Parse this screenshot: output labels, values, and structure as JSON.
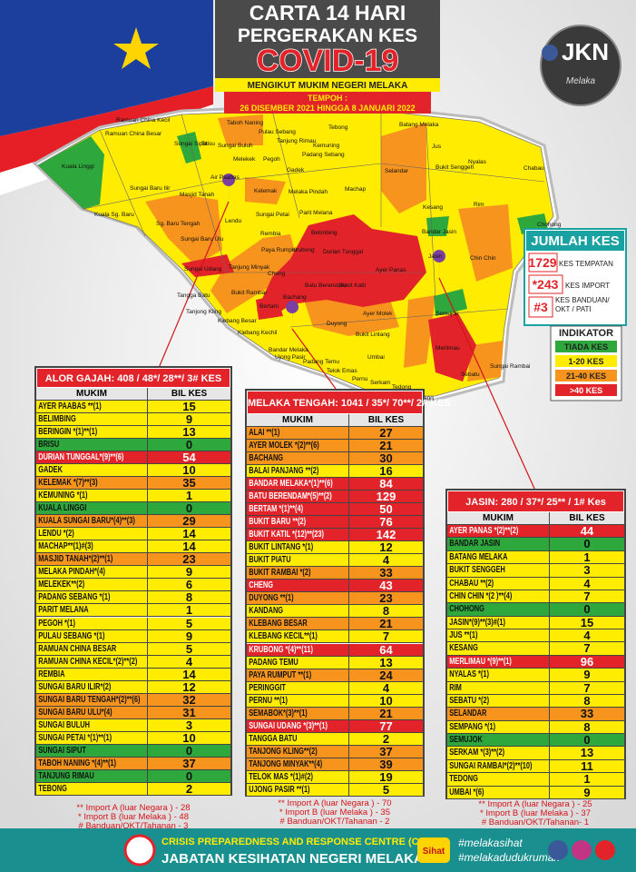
{
  "header": {
    "title_line1": "CARTA 14 HARI",
    "title_line2": "PERGERAKAN KES",
    "title_line3": "COVID-19",
    "subtitle": "MENGIKUT MUKIM NEGERI MELAKA",
    "period_label": "TEMPOH :",
    "period": "26 DISEMBER 2021 HINGGA 8 JANUARI 2022"
  },
  "logo": {
    "name": "JKN",
    "place": "Melaka"
  },
  "summary": {
    "title": "JUMLAH KES",
    "items": [
      {
        "value": "1729",
        "label": "KES TEMPATAN"
      },
      {
        "value": "*243",
        "label": "KES IMPORT"
      },
      {
        "value": "#3",
        "label": "KES BANDUAN/ OKT / PATI"
      }
    ]
  },
  "legend": {
    "title": "INDIKATOR",
    "items": [
      {
        "label": "TIADA KES",
        "color": "#2ea83c"
      },
      {
        "label": "1-20 KES",
        "color": "#ffec00"
      },
      {
        "label": "21-40 KES",
        "color": "#f7941d"
      },
      {
        "label": ">40 KES",
        "color": "#e2242a"
      }
    ]
  },
  "map": {
    "labels": [
      "Ramuan China Kecil",
      "Ramuan China Besar",
      "Kuala Linggi",
      "Sungai Siput",
      "Brisu",
      "Taboh Naning",
      "Sungai Buluh",
      "Pulau Sebang",
      "Tebong",
      "Batang Melaka",
      "Tanjung Rimau",
      "Kemuning",
      "Padang Sebang",
      "Melekek",
      "Pegoh",
      "Gadek",
      "Air Paabas",
      "Sungai Baru Ilir",
      "Masjid Tanah",
      "Kelemak",
      "Melaka Pindah",
      "Machap",
      "Selandar",
      "Bukit Senggeh",
      "Jus",
      "Nyalas",
      "Chabau",
      "Kuala Sg. Baru",
      "Sg. Baru Tengah",
      "Lendu",
      "Sungai Petai",
      "Parit Melana",
      "Kesang",
      "Rim",
      "Chohong",
      "Sungai Baru Ulu",
      "Rembia",
      "Belimbing",
      "Bandar Jasin",
      "Jasin",
      "Chin Chin",
      "Sungai Udang",
      "Paya Rumput",
      "Tanjung Minyak",
      "Durian Tunggal",
      "Ayer Panas",
      "Krubong",
      "Cheng",
      "Bukit Rambai",
      "Batu Berendam",
      "Bukit Katil",
      "Tangga Batu",
      "Tanjong Kling",
      "Bertam",
      "Bachang",
      "Semujok",
      "Ayer Molek",
      "Klebang Besar",
      "Duyong",
      "Klebang Kechil",
      "Bukit Lintang",
      "Merlimau",
      "Bandar Melaka",
      "Ujong Pasir",
      "Padang Temu",
      "Umbai",
      "Telok Emas",
      "Pernu",
      "Serkam",
      "Tedong",
      "Sempang",
      "Sebatu",
      "Sungai Rambai"
    ]
  },
  "districts": [
    {
      "title": "ALOR GAJAH: 408 / 48*/ 28**/ 3# KES",
      "columns": [
        "MUKIM",
        "BIL KES"
      ],
      "rows": [
        {
          "mukim": "AYER PAABAS **(1)",
          "cases": 15
        },
        {
          "mukim": "BELIMBING",
          "cases": 9
        },
        {
          "mukim": "BERINGIN *(1)**(1)",
          "cases": 13
        },
        {
          "mukim": "BRISU",
          "cases": 0
        },
        {
          "mukim": "DURIAN TUNGGAL*(9)**(6)",
          "cases": 54
        },
        {
          "mukim": "GADEK",
          "cases": 10
        },
        {
          "mukim": "KELEMAK *(7)**(3)",
          "cases": 35
        },
        {
          "mukim": "KEMUNING *(1)",
          "cases": 1
        },
        {
          "mukim": "KUALA LINGGI",
          "cases": 0
        },
        {
          "mukim": "KUALA SUNGAI BARU*(4)**(3)",
          "cases": 29
        },
        {
          "mukim": "LENDU *(2)",
          "cases": 14
        },
        {
          "mukim": "MACHAP**(1)#(3)",
          "cases": 14
        },
        {
          "mukim": "MASJID TANAH*(2)**(1)",
          "cases": 23
        },
        {
          "mukim": "MELAKA PINDAH*(4)",
          "cases": 9
        },
        {
          "mukim": "MELEKEK**(2)",
          "cases": 6
        },
        {
          "mukim": "PADANG SEBANG *(1)",
          "cases": 8
        },
        {
          "mukim": "PARIT MELANA",
          "cases": 1
        },
        {
          "mukim": "PEGOH *(1)",
          "cases": 5
        },
        {
          "mukim": "PULAU SEBANG *(1)",
          "cases": 9
        },
        {
          "mukim": "RAMUAN CHINA BESAR",
          "cases": 5
        },
        {
          "mukim": "RAMUAN CHINA KECIL*(2)**(2)",
          "cases": 4
        },
        {
          "mukim": "REMBIA",
          "cases": 14
        },
        {
          "mukim": "SUNGAI BARU ILIR*(2)",
          "cases": 12
        },
        {
          "mukim": "SUNGAI BARU TENGAH*(2)**(6)",
          "cases": 32
        },
        {
          "mukim": "SUNGAI BARU ULU*(4)",
          "cases": 31
        },
        {
          "mukim": "SUNGAI BULUH",
          "cases": 3
        },
        {
          "mukim": "SUNGAI PETAI *(1)**(1)",
          "cases": 10
        },
        {
          "mukim": "SUNGAI SIPUT",
          "cases": 0
        },
        {
          "mukim": "TABOH NANING *(4)**(1)",
          "cases": 37
        },
        {
          "mukim": "TANJUNG RIMAU",
          "cases": 0
        },
        {
          "mukim": "TEBONG",
          "cases": 2
        }
      ],
      "footnotes": [
        "** Import A (luar Negara ) - 28",
        "* Import B (luar Melaka ) - 48",
        "# Banduan/OKT/Tahanan - 3"
      ]
    },
    {
      "title": "MELAKA TENGAH: 1041 / 35*/ 70**/ 2# KES",
      "columns": [
        "MUKIM",
        "BIL KES"
      ],
      "rows": [
        {
          "mukim": "ALAI **(1)",
          "cases": 27
        },
        {
          "mukim": "AYER MOLEK *(2)**(6)",
          "cases": 21
        },
        {
          "mukim": "BACHANG",
          "cases": 30
        },
        {
          "mukim": "BALAI PANJANG **(2)",
          "cases": 16
        },
        {
          "mukim": "BANDAR MELAKA*(1)**(6)",
          "cases": 84
        },
        {
          "mukim": "BATU BERENDAM*(5)**(2)",
          "cases": 129
        },
        {
          "mukim": "BERTAM *(1)**(4)",
          "cases": 50
        },
        {
          "mukim": "BUKIT BARU **(2)",
          "cases": 76
        },
        {
          "mukim": "BUKIT KATIL *(12)**(23)",
          "cases": 142
        },
        {
          "mukim": "BUKIT LINTANG *(1)",
          "cases": 12
        },
        {
          "mukim": "BUKIT PIATU",
          "cases": 4
        },
        {
          "mukim": "BUKIT RAMBAI *(2)",
          "cases": 33
        },
        {
          "mukim": "CHENG",
          "cases": 43
        },
        {
          "mukim": "DUYONG **(1)",
          "cases": 23
        },
        {
          "mukim": "KANDANG",
          "cases": 8
        },
        {
          "mukim": "KLEBANG BESAR",
          "cases": 21
        },
        {
          "mukim": "KLEBANG KECIL**(1)",
          "cases": 7
        },
        {
          "mukim": "KRUBONG *(4)**(11)",
          "cases": 64
        },
        {
          "mukim": "PADANG TEMU",
          "cases": 13
        },
        {
          "mukim": "PAYA RUMPUT **(1)",
          "cases": 24
        },
        {
          "mukim": "PERINGGIT",
          "cases": 4
        },
        {
          "mukim": "PERNU **(1)",
          "cases": 10
        },
        {
          "mukim": "SEMABOK*(3)**(1)",
          "cases": 21
        },
        {
          "mukim": "SUNGAI UDANG *(3)**(1)",
          "cases": 77
        },
        {
          "mukim": "TANGGA BATU",
          "cases": 2
        },
        {
          "mukim": "TANJONG KLING**(2)",
          "cases": 37
        },
        {
          "mukim": "TANJONG MINYAK**(4)",
          "cases": 39
        },
        {
          "mukim": "TELOK MAS *(1)#(2)",
          "cases": 19
        },
        {
          "mukim": "UJONG PASIR **(1)",
          "cases": 5
        }
      ],
      "footnotes": [
        "** Import A (luar Negara ) - 70",
        "* Import B (luar Melaka ) - 35",
        "# Banduan/OKT/Tahanan - 2"
      ]
    },
    {
      "title": "JASIN: 280 / 37*/ 25** / 1# Kes",
      "columns": [
        "MUKIM",
        "BIL KES"
      ],
      "rows": [
        {
          "mukim": "AYER PANAS *(2)**(2)",
          "cases": 44
        },
        {
          "mukim": "BANDAR JASIN",
          "cases": 0
        },
        {
          "mukim": "BATANG MELAKA",
          "cases": 1
        },
        {
          "mukim": "BUKIT SENGGEH",
          "cases": 3
        },
        {
          "mukim": "CHABAU **(2)",
          "cases": 4
        },
        {
          "mukim": "CHIN CHIN *(2 )**(4)",
          "cases": 7
        },
        {
          "mukim": "CHOHONG",
          "cases": 0
        },
        {
          "mukim": "JASIN*(9)**(3)#(1)",
          "cases": 15
        },
        {
          "mukim": "JUS **(1)",
          "cases": 4
        },
        {
          "mukim": "KESANG",
          "cases": 7
        },
        {
          "mukim": "MERLIMAU *(9)**(1)",
          "cases": 96
        },
        {
          "mukim": "NYALAS *(1)",
          "cases": 9
        },
        {
          "mukim": "RIM",
          "cases": 7
        },
        {
          "mukim": "SEBATU *(2)",
          "cases": 8
        },
        {
          "mukim": "SELANDAR",
          "cases": 33
        },
        {
          "mukim": "SEMPANG *(1)",
          "cases": 8
        },
        {
          "mukim": "SEMUJOK",
          "cases": 0
        },
        {
          "mukim": "SERKAM *(3)**(2)",
          "cases": 13
        },
        {
          "mukim": "SUNGAI RAMBAI*(2)**(10)",
          "cases": 11
        },
        {
          "mukim": "TEDONG",
          "cases": 1
        },
        {
          "mukim": "UMBAI *(6)",
          "cases": 9
        }
      ],
      "footnotes": [
        "** Import A (luar Negara ) - 25",
        "* Import B (luar Melaka ) - 37",
        "# Banduan/OKT/Tahanan- 1"
      ]
    }
  ],
  "footer": {
    "org_line1": "CRISIS PREPAREDNESS AND RESPONSE CENTRE (CPRC)",
    "org_line2": "JABATAN KESIHATAN NEGERI MELAKA",
    "badge": "Sihat",
    "hashtag1": "#melakasihat",
    "hashtag2": "#melakadudukrumah"
  }
}
